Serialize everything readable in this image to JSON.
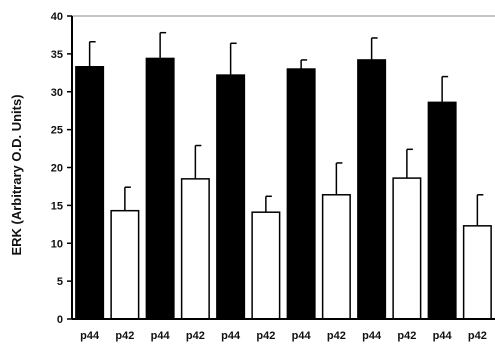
{
  "chart_data": {
    "type": "bar",
    "title": "",
    "xlabel": "",
    "ylabel": "ERK (Arbitrary O.D. Units)",
    "ylim": [
      0,
      40
    ],
    "yticks": [
      0,
      5,
      10,
      15,
      20,
      25,
      30,
      35,
      40
    ],
    "grid": false,
    "legend": "none",
    "categories": [
      "p44",
      "p42",
      "p44",
      "p42",
      "p44",
      "p42",
      "p44",
      "p42",
      "p44",
      "p42",
      "p44",
      "p42"
    ],
    "values": [
      33.3,
      14.3,
      34.4,
      18.5,
      32.2,
      14.1,
      33.0,
      16.4,
      34.2,
      18.6,
      28.6,
      12.3
    ],
    "errors": [
      3.3,
      3.1,
      3.4,
      4.4,
      4.2,
      2.1,
      1.2,
      4.2,
      2.9,
      3.8,
      3.4,
      4.1
    ],
    "colors": {
      "p44": "#000000",
      "p42": "#ffffff",
      "outline": "#000000"
    }
  }
}
